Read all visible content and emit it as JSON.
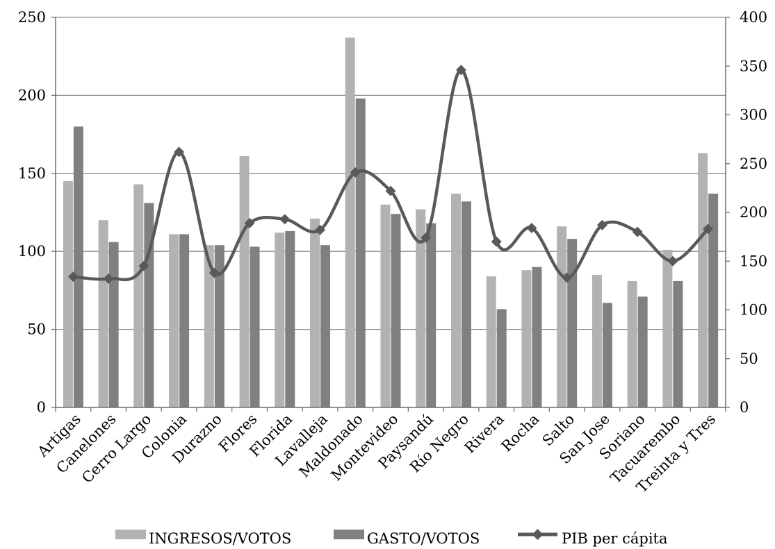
{
  "chart_data": {
    "type": "bar",
    "categories": [
      "Artigas",
      "Canelones",
      "Cerro Largo",
      "Colonia",
      "Durazno",
      "Flores",
      "Florida",
      "Lavalleja",
      "Maldonado",
      "Montevideo",
      "Paysandú",
      "Río Negro",
      "Rivera",
      "Rocha",
      "Salto",
      "San Jose",
      "Soriano",
      "Tacuarembo",
      "Treinta y Tres"
    ],
    "series": [
      {
        "name": "INGRESOS/VOTOS",
        "type": "bar",
        "axis": "left",
        "color": "#b2b2b2",
        "values": [
          145,
          120,
          143,
          111,
          104,
          161,
          112,
          121,
          237,
          130,
          127,
          137,
          84,
          88,
          116,
          85,
          81,
          101,
          163
        ]
      },
      {
        "name": "GASTO/VOTOS",
        "type": "bar",
        "axis": "left",
        "color": "#808080",
        "values": [
          180,
          106,
          131,
          111,
          104,
          103,
          113,
          104,
          198,
          124,
          118,
          132,
          63,
          90,
          108,
          67,
          71,
          81,
          137
        ]
      },
      {
        "name": "PIB per cápita",
        "type": "line",
        "axis": "right",
        "color": "#595959",
        "marker": "diamond",
        "smooth": true,
        "values": [
          134,
          132,
          145,
          262,
          138,
          189,
          193,
          182,
          241,
          222,
          174,
          346,
          170,
          184,
          133,
          187,
          180,
          150,
          183
        ]
      }
    ],
    "y_left": {
      "ylim": [
        0,
        250
      ],
      "ticks": [
        0,
        50,
        100,
        150,
        200,
        250
      ]
    },
    "y_right": {
      "ylim": [
        0,
        400
      ],
      "ticks": [
        0,
        50,
        100,
        150,
        200,
        250,
        300,
        350,
        400
      ]
    },
    "grid": true,
    "legend_position": "bottom",
    "title": "",
    "xlabel": "",
    "ylabel": ""
  },
  "legend": [
    {
      "label": "INGRESOS/VOTOS"
    },
    {
      "label": "GASTO/VOTOS"
    },
    {
      "label": "PIB per cápita"
    }
  ]
}
